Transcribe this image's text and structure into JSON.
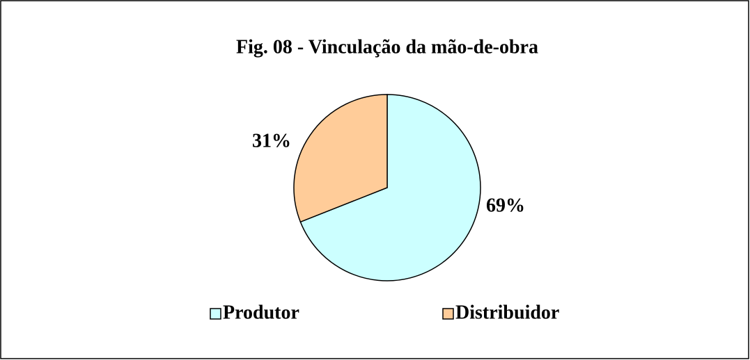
{
  "chart_data": {
    "type": "pie",
    "title": "Fig. 08 - Vinculação da mão-de-obra",
    "categories": [
      "Produtor",
      "Distribuidor"
    ],
    "values": [
      69,
      31
    ],
    "value_labels": [
      "69%",
      "31%"
    ],
    "colors": [
      "#ccffff",
      "#ffcc99"
    ],
    "legend": "bottom"
  }
}
